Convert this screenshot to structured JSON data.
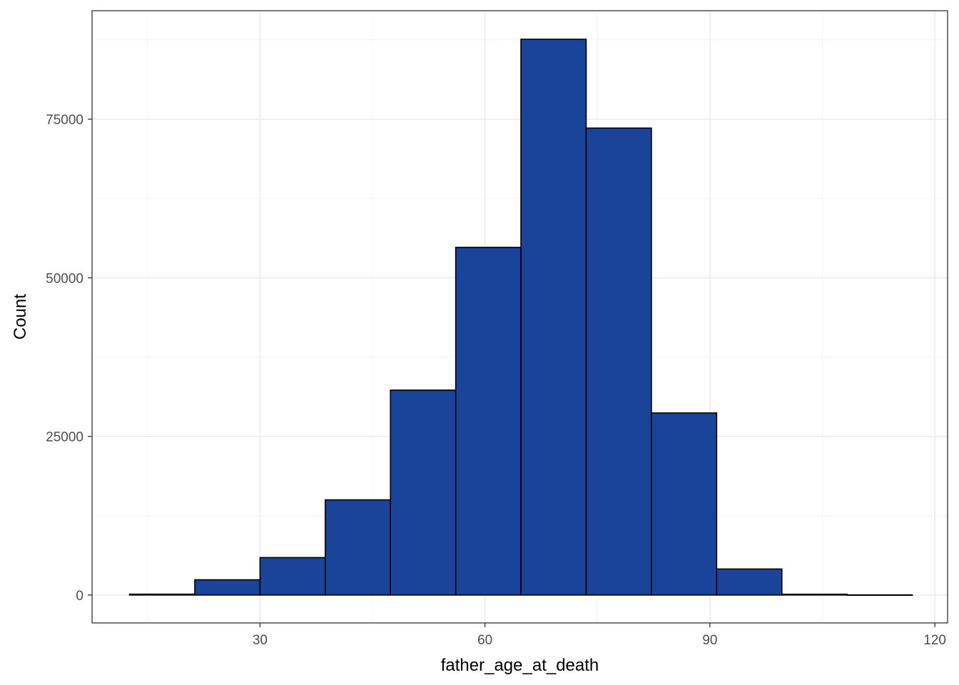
{
  "chart_data": {
    "type": "bar",
    "title": "",
    "xlabel": "father_age_at_death",
    "ylabel": "Count",
    "bins": [
      {
        "x_min": 12.6,
        "x_max": 21.3,
        "count": 130
      },
      {
        "x_min": 21.3,
        "x_max": 30.0,
        "count": 2400
      },
      {
        "x_min": 30.0,
        "x_max": 38.7,
        "count": 5900
      },
      {
        "x_min": 38.7,
        "x_max": 47.4,
        "count": 15000
      },
      {
        "x_min": 47.4,
        "x_max": 56.1,
        "count": 32300
      },
      {
        "x_min": 56.1,
        "x_max": 64.8,
        "count": 54800
      },
      {
        "x_min": 64.8,
        "x_max": 73.5,
        "count": 87600
      },
      {
        "x_min": 73.5,
        "x_max": 82.2,
        "count": 73600
      },
      {
        "x_min": 82.2,
        "x_max": 90.9,
        "count": 28700
      },
      {
        "x_min": 90.9,
        "x_max": 99.6,
        "count": 4100
      },
      {
        "x_min": 99.6,
        "x_max": 108.3,
        "count": 120
      },
      {
        "x_min": 108.3,
        "x_max": 117.0,
        "count": 20
      }
    ],
    "x_ticks": [
      30,
      60,
      90,
      120
    ],
    "x_tick_labels": [
      "30",
      "60",
      "90",
      "120"
    ],
    "y_ticks": [
      0,
      25000,
      50000,
      75000
    ],
    "y_tick_labels": [
      "0",
      "25000",
      "50000",
      "75000"
    ],
    "xlim": [
      7.6,
      121.7
    ],
    "ylim": [
      -4400,
      92100
    ],
    "grid": true,
    "legend": "none",
    "colors": {
      "bar_fill": "#1a4499",
      "bar_stroke": "#000000",
      "grid_major": "#ebebeb",
      "grid_minor": "#f4f4f4",
      "panel_border": "#333333",
      "tick_text": "#4d4d4d",
      "background": "#ffffff"
    }
  }
}
